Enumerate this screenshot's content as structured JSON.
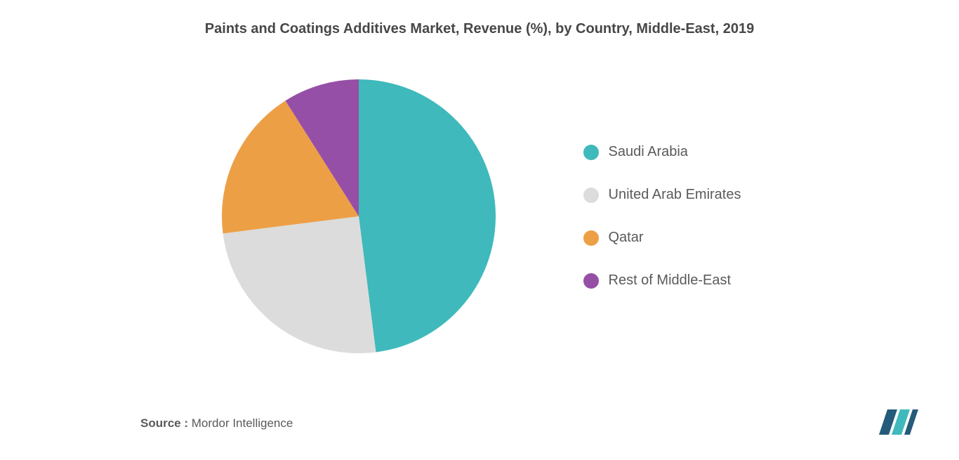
{
  "chart": {
    "type": "pie",
    "title": "Paints and Coatings Additives Market, Revenue (%), by Country, Middle-East, 2019",
    "title_fontsize": 20,
    "title_color": "#474747",
    "background_color": "#ffffff",
    "slices": [
      {
        "label": "Saudi Arabia",
        "value": 48,
        "color": "#3fb9bb"
      },
      {
        "label": "United Arab Emirates",
        "value": 25,
        "color": "#dcdcdc"
      },
      {
        "label": "Qatar",
        "value": 18,
        "color": "#ed9f46"
      },
      {
        "label": "Rest of Middle-East",
        "value": 9,
        "color": "#964fa6"
      }
    ],
    "pie_radius": 195,
    "legend_fontsize": 20,
    "legend_color": "#5a5a5a"
  },
  "source": {
    "label": "Source :",
    "text": " Mordor Intelligence"
  },
  "logo": {
    "bar1_color": "#245b7a",
    "bar2_color": "#3fb9bb"
  }
}
